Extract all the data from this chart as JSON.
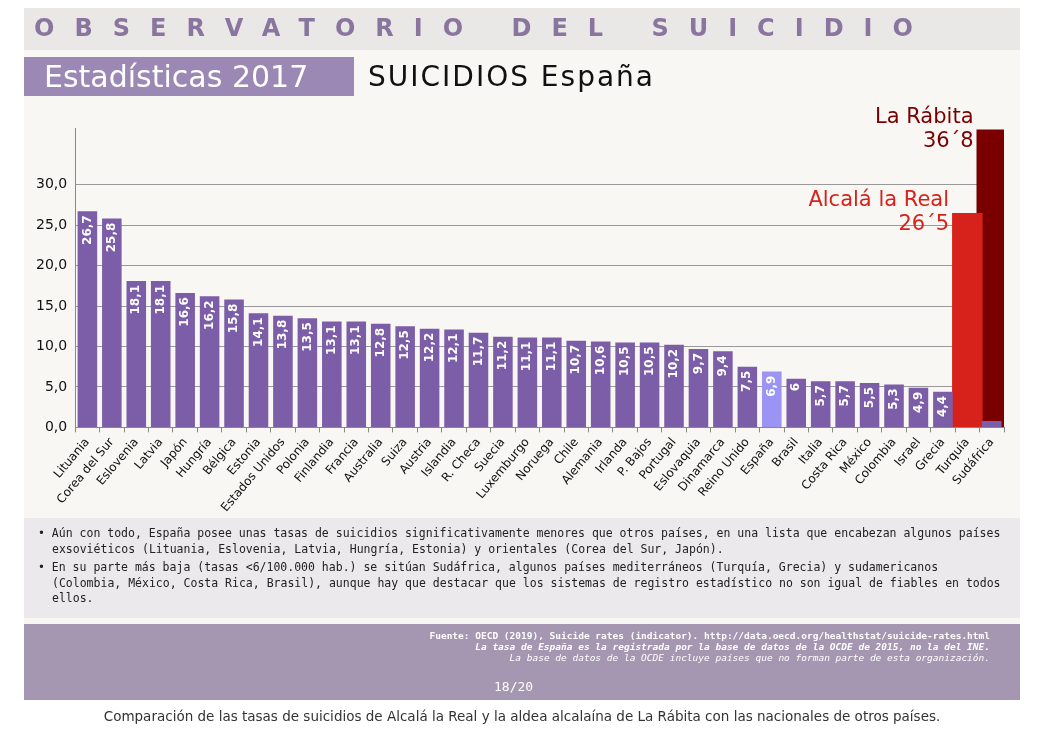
{
  "chart_data": {
    "type": "bar",
    "title": "OBSERVATORIO DEL SUICIDIO",
    "subtitle": "Estadísticas 2017",
    "categories": [
      "Lituania",
      "Corea del Sur",
      "Eslovenia",
      "Latvia",
      "Japón",
      "Hungría",
      "Bélgica",
      "Estonia",
      "Estados Unidos",
      "Polonia",
      "Finlandia",
      "Francia",
      "Australia",
      "Suiza",
      "Austria",
      "Islandia",
      "R. Checa",
      "Suecia",
      "Luxemburgo",
      "Noruega",
      "Chile",
      "Alemania",
      "Irlanda",
      "P. Bajos",
      "Portugal",
      "Eslovaquia",
      "Dinamarca",
      "Reino Unido",
      "España",
      "Brasil",
      "Italia",
      "Costa Rica",
      "México",
      "Colombia",
      "Israel",
      "Grecia",
      "Turquía",
      "Sudáfrica"
    ],
    "series": [
      {
        "colors": [
          "#7b5ea7",
          "#7b5ea7",
          "#7b5ea7",
          "#7b5ea7",
          "#7b5ea7",
          "#7b5ea7",
          "#7b5ea7",
          "#7b5ea7",
          "#7b5ea7",
          "#7b5ea7",
          "#7b5ea7",
          "#7b5ea7",
          "#7b5ea7",
          "#7b5ea7",
          "#7b5ea7",
          "#7b5ea7",
          "#7b5ea7",
          "#7b5ea7",
          "#7b5ea7",
          "#7b5ea7",
          "#7b5ea7",
          "#7b5ea7",
          "#7b5ea7",
          "#7b5ea7",
          "#7b5ea7",
          "#7b5ea7",
          "#7b5ea7",
          "#7b5ea7",
          "#9b94f5",
          "#7b5ea7",
          "#7b5ea7",
          "#7b5ea7",
          "#7b5ea7",
          "#7b5ea7",
          "#7b5ea7",
          "#7b5ea7",
          "#7b5ea7",
          "#7b5ea7"
        ],
        "values": [
          26.7,
          25.8,
          18.1,
          18.1,
          16.6,
          16.2,
          15.8,
          14.1,
          13.8,
          13.5,
          13.1,
          13.1,
          12.8,
          12.5,
          12.2,
          12.1,
          11.7,
          11.2,
          11.1,
          11.1,
          10.7,
          10.6,
          10.5,
          10.5,
          10.2,
          9.7,
          9.4,
          7.5,
          6.9,
          6,
          5.7,
          5.7,
          5.5,
          5.3,
          4.9,
          4.4,
          null,
          0.8
        ],
        "value_labels": [
          "26,7",
          "25,8",
          "18,1",
          "18,1",
          "16,6",
          "16,2",
          "15,8",
          "14,1",
          "13,8",
          "13,5",
          "13,1",
          "13,1",
          "12,8",
          "12,5",
          "12,2",
          "12,1",
          "11,7",
          "11,2",
          "11,1",
          "11,1",
          "10,7",
          "10,6",
          "10,5",
          "10,5",
          "10,2",
          "9,7",
          "9,4",
          "7,5",
          "6,9",
          "6",
          "5,7",
          "5,7",
          "5,5",
          "5,3",
          "4,9",
          "4,4",
          null,
          null
        ]
      },
      {
        "name": "Alcalá la Real",
        "color": "#d6221a",
        "values": [
          null,
          null,
          null,
          null,
          null,
          null,
          null,
          null,
          null,
          null,
          null,
          null,
          null,
          null,
          null,
          null,
          null,
          null,
          null,
          null,
          null,
          null,
          null,
          null,
          null,
          null,
          null,
          null,
          null,
          null,
          null,
          null,
          null,
          null,
          null,
          null,
          26.5,
          null
        ]
      },
      {
        "name": "La Rábita",
        "color": "#7a0000",
        "values": [
          null,
          null,
          null,
          null,
          null,
          null,
          null,
          null,
          null,
          null,
          null,
          null,
          null,
          null,
          null,
          null,
          null,
          null,
          null,
          null,
          null,
          null,
          null,
          null,
          null,
          null,
          null,
          null,
          null,
          null,
          null,
          null,
          null,
          null,
          null,
          null,
          null,
          36.8
        ]
      }
    ],
    "ylim": [
      0,
      37
    ],
    "yticks": [
      {
        "value": 0,
        "label": "0,0"
      },
      {
        "value": 5,
        "label": "5,0"
      },
      {
        "value": 10,
        "label": "10,0"
      },
      {
        "value": 15,
        "label": "15,0"
      },
      {
        "value": 20,
        "label": "20,0"
      },
      {
        "value": 25,
        "label": "25,0"
      },
      {
        "value": 30,
        "label": "30,0"
      }
    ],
    "grid": "y",
    "annotations": [
      "SUICIDIOS España",
      "• Aún con todo, España posee unas tasas de suicidios significativamente menores que otros países, en una lista que encabezan algunos países exsoviéticos (Lituania, Eslovenia, Latvia, Hungría, Estonia) y orientales (Corea del Sur, Japón).",
      "• En su parte más baja (tasas <6/100.000 hab.) se sitúan Sudáfrica, algunos países mediterráneos (Turquía, Grecia) y sudamericanos (Colombia, México, Costa Rica, Brasil), aunque hay que destacar que los sistemas de registro estadístico no son igual de fiables en todos ellos.",
      "Fuente: OECD (2019), Suicide rates (indicator). http://data.oecd.org/healthstat/suicide-rates.html",
      "La tasa de España es la registrada por la base de datos de la OCDE de 2015, no la del INE.",
      "La base de datos de la OCDE incluye países que no forman parte de esta organización.",
      "18/20",
      "Comparación de las tasas de suicidios de Alcalá la Real y la aldea alcalaína de La Rábita con las nacionales de otros países.",
      {
        "text": "26´5",
        "x": "Turquía",
        "y": 26.5
      },
      {
        "text": "36´8",
        "x": "Sudáfrica",
        "y": 36.8
      }
    ]
  }
}
